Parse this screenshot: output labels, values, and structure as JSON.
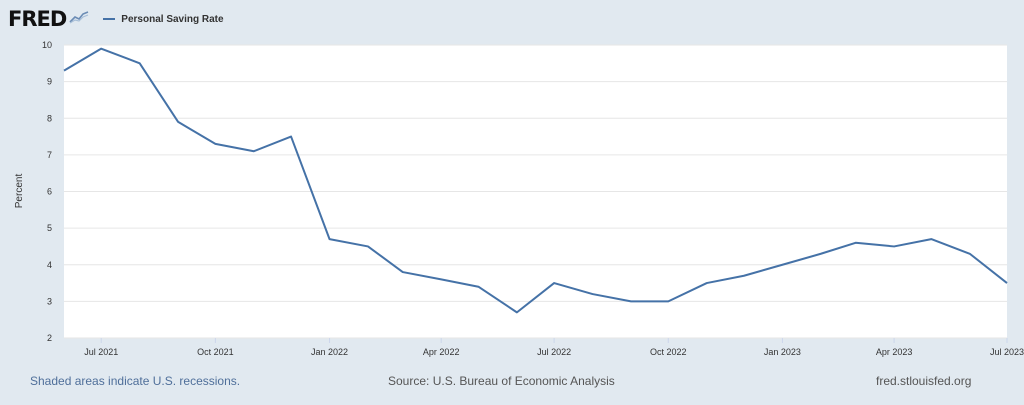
{
  "header": {
    "logo_text": "FRED",
    "logo_icon": "chart-line-icon"
  },
  "footer": {
    "recessions_note": "Shaded areas indicate U.S. recessions.",
    "source": "Source: U.S. Bureau of Economic Analysis",
    "site": "fred.stlouisfed.org"
  },
  "chart_data": {
    "type": "line",
    "title": "",
    "xlabel": "",
    "ylabel": "Percent",
    "ylim": [
      2,
      10
    ],
    "yticks": [
      2,
      3,
      4,
      5,
      6,
      7,
      8,
      9,
      10
    ],
    "grid": true,
    "legend": "top-left",
    "line_color": "#4572a7",
    "x": [
      "2021-06",
      "2021-07",
      "2021-08",
      "2021-09",
      "2021-10",
      "2021-11",
      "2021-12",
      "2022-01",
      "2022-02",
      "2022-03",
      "2022-04",
      "2022-05",
      "2022-06",
      "2022-07",
      "2022-08",
      "2022-09",
      "2022-10",
      "2022-11",
      "2022-12",
      "2023-01",
      "2023-02",
      "2023-03",
      "2023-04",
      "2023-05",
      "2023-06",
      "2023-07"
    ],
    "xtick_labels": [
      {
        "date": "2021-07",
        "label": "Jul 2021"
      },
      {
        "date": "2021-10",
        "label": "Oct 2021"
      },
      {
        "date": "2022-01",
        "label": "Jan 2022"
      },
      {
        "date": "2022-04",
        "label": "Apr 2022"
      },
      {
        "date": "2022-07",
        "label": "Jul 2022"
      },
      {
        "date": "2022-10",
        "label": "Oct 2022"
      },
      {
        "date": "2023-01",
        "label": "Jan 2023"
      },
      {
        "date": "2023-04",
        "label": "Apr 2023"
      },
      {
        "date": "2023-07",
        "label": "Jul 2023"
      }
    ],
    "series": [
      {
        "name": "Personal Saving Rate",
        "values": [
          9.3,
          9.9,
          9.5,
          7.9,
          7.3,
          7.1,
          7.5,
          4.7,
          4.5,
          3.8,
          3.6,
          3.4,
          2.7,
          3.5,
          3.2,
          3.0,
          3.0,
          3.5,
          3.7,
          4.0,
          4.3,
          4.6,
          4.5,
          4.7,
          4.3,
          3.5
        ]
      }
    ]
  }
}
